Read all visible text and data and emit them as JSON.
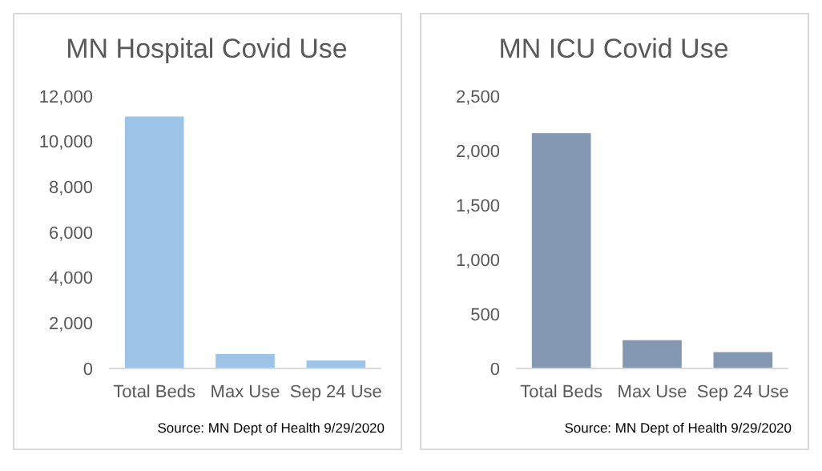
{
  "chart_data": [
    {
      "type": "bar",
      "title": "MN Hospital Covid Use",
      "categories": [
        "Total Beds",
        "Max Use",
        "Sep 24 Use"
      ],
      "values": [
        11100,
        640,
        350
      ],
      "color": "#9dc3e6",
      "ylim": [
        0,
        12000
      ],
      "yticks": [
        {
          "value": 0,
          "label": "0"
        },
        {
          "value": 2000,
          "label": "2,000"
        },
        {
          "value": 4000,
          "label": "4,000"
        },
        {
          "value": 6000,
          "label": "6,000"
        },
        {
          "value": 8000,
          "label": "8,000"
        },
        {
          "value": 10000,
          "label": "10,000"
        },
        {
          "value": 12000,
          "label": "12,000"
        }
      ],
      "grid": false,
      "annotations": [
        "Source: MN Dept of Health  9/29/2020"
      ]
    },
    {
      "type": "bar",
      "title": "MN ICU Covid Use",
      "categories": [
        "Total Beds",
        "Max Use",
        "Sep 24 Use"
      ],
      "values": [
        2160,
        260,
        150
      ],
      "color": "#8497b0",
      "ylim": [
        0,
        2500
      ],
      "yticks": [
        {
          "value": 0,
          "label": "0"
        },
        {
          "value": 500,
          "label": "500"
        },
        {
          "value": 1000,
          "label": "1,000"
        },
        {
          "value": 1500,
          "label": "1,500"
        },
        {
          "value": 2000,
          "label": "2,000"
        },
        {
          "value": 2500,
          "label": "2,500"
        }
      ],
      "grid": false,
      "annotations": [
        "Source: MN Dept of Health  9/29/2020"
      ]
    }
  ]
}
